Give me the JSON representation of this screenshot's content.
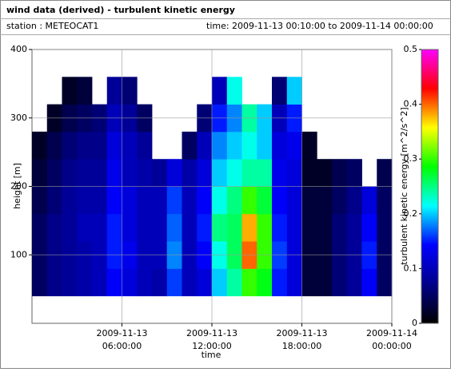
{
  "chart_data": {
    "type": "heatmap",
    "title": "wind data (derived) - turbulent kinetic energy",
    "station": "station : METEOCAT1",
    "period": "time: 2009-11-13 00:10:00 to 2009-11-14 00:00:00",
    "x_label": "time",
    "y_label": "height [m]",
    "colorbar_label": "turbulent kinetic energy [m^2/s^2]",
    "x": [
      "2009-11-13 00:30:00",
      "2009-11-13 01:30:00",
      "2009-11-13 02:30:00",
      "2009-11-13 03:30:00",
      "2009-11-13 04:30:00",
      "2009-11-13 05:30:00",
      "2009-11-13 06:30:00",
      "2009-11-13 07:30:00",
      "2009-11-13 08:30:00",
      "2009-11-13 09:30:00",
      "2009-11-13 10:30:00",
      "2009-11-13 11:30:00",
      "2009-11-13 12:30:00",
      "2009-11-13 13:30:00",
      "2009-11-13 14:30:00",
      "2009-11-13 15:30:00",
      "2009-11-13 16:30:00",
      "2009-11-13 17:30:00",
      "2009-11-13 18:30:00",
      "2009-11-13 19:30:00",
      "2009-11-13 20:30:00",
      "2009-11-13 21:30:00",
      "2009-11-13 22:30:00",
      "2009-11-13 23:30:00"
    ],
    "y": [
      60,
      100,
      140,
      180,
      220,
      260,
      300,
      340
    ],
    "z": [
      [
        0.05,
        0.07,
        0.08,
        0.09,
        0.1,
        0.14,
        0.12,
        0.1,
        0.09,
        0.16,
        0.1,
        0.12,
        0.2,
        0.24,
        0.3,
        0.28,
        0.15,
        0.12,
        0.03,
        0.03,
        0.06,
        0.08,
        0.14,
        0.05
      ],
      [
        0.05,
        0.07,
        0.08,
        0.09,
        0.1,
        0.15,
        0.13,
        0.1,
        0.1,
        0.18,
        0.1,
        0.14,
        0.22,
        0.26,
        0.4,
        0.3,
        0.16,
        0.12,
        0.03,
        0.03,
        0.06,
        0.08,
        0.15,
        0.05
      ],
      [
        0.05,
        0.07,
        0.08,
        0.1,
        0.1,
        0.15,
        0.12,
        0.1,
        0.1,
        0.17,
        0.1,
        0.15,
        0.25,
        0.26,
        0.38,
        0.3,
        0.15,
        0.12,
        0.03,
        0.03,
        0.06,
        0.08,
        0.14,
        0.05
      ],
      [
        0.04,
        0.06,
        0.08,
        0.09,
        0.09,
        0.14,
        0.12,
        0.1,
        0.1,
        0.16,
        0.1,
        0.14,
        0.22,
        0.25,
        0.3,
        0.27,
        0.14,
        0.12,
        0.03,
        0.03,
        0.05,
        0.07,
        0.12,
        0.05
      ],
      [
        0.03,
        0.05,
        0.07,
        0.08,
        0.08,
        0.13,
        0.1,
        0.09,
        0.08,
        0.12,
        0.09,
        0.12,
        0.2,
        0.22,
        0.24,
        0.24,
        0.13,
        0.12,
        0.02,
        0.02,
        0.04,
        0.05,
        null,
        0.04
      ],
      [
        0.02,
        0.04,
        0.06,
        0.07,
        0.07,
        0.12,
        0.1,
        0.08,
        null,
        null,
        0.05,
        0.1,
        0.18,
        0.2,
        0.22,
        0.2,
        0.12,
        0.13,
        0.02,
        null,
        null,
        null,
        null,
        null
      ],
      [
        null,
        0.02,
        0.04,
        0.05,
        0.06,
        0.1,
        0.08,
        0.05,
        null,
        null,
        null,
        0.06,
        0.15,
        0.18,
        0.24,
        0.2,
        0.1,
        0.15,
        null,
        null,
        null,
        null,
        null,
        null
      ],
      [
        null,
        null,
        0.02,
        0.03,
        null,
        0.08,
        0.06,
        null,
        null,
        null,
        null,
        null,
        0.1,
        0.22,
        null,
        null,
        0.06,
        0.2,
        null,
        null,
        null,
        null,
        null,
        null
      ]
    ],
    "xlim": [
      "2009-11-13 00:00:00",
      "2009-11-14 00:00:00"
    ],
    "xticks": [
      "2009-11-13 06:00:00",
      "2009-11-13 12:00:00",
      "2009-11-13 18:00:00",
      "2009-11-14 00:00:00"
    ],
    "ylim": [
      0,
      400
    ],
    "yticks": [
      100,
      200,
      300,
      400
    ],
    "zlim": [
      0,
      0.5
    ],
    "zticks": [
      0,
      0.1,
      0.2,
      0.3,
      0.4,
      0.5
    ],
    "colormap": [
      "#000000",
      "#00008b",
      "#0000ff",
      "#00ffff",
      "#00ff00",
      "#ffff00",
      "#ff0000",
      "#ff00ff"
    ],
    "grid": true
  }
}
